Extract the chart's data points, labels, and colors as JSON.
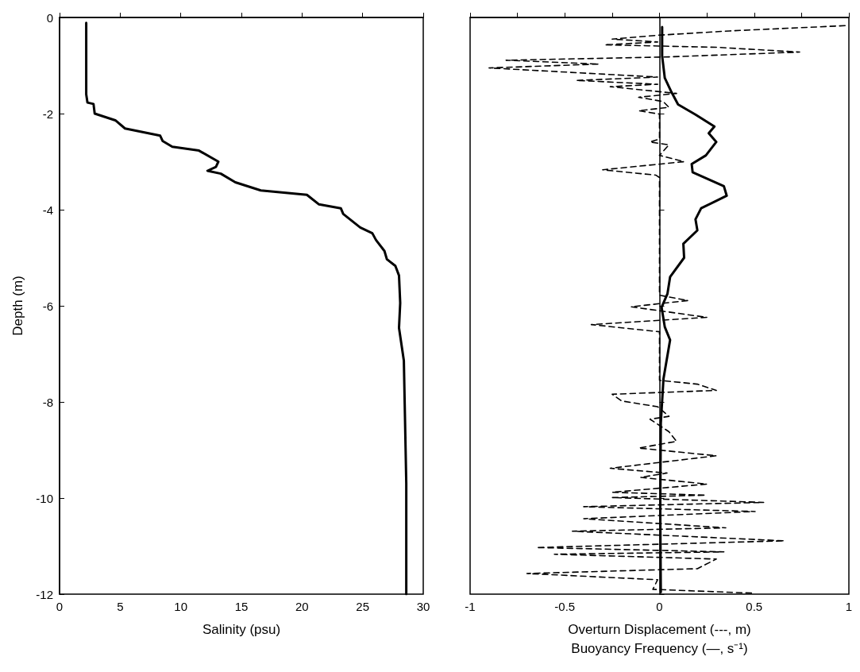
{
  "chart_data": [
    {
      "type": "line",
      "xlabel": "Salinity (psu)",
      "ylabel": "Depth (m)",
      "xlim": [
        0,
        30
      ],
      "xticks": [
        0,
        5,
        10,
        15,
        20,
        25,
        30
      ],
      "ylim": [
        -12,
        0
      ],
      "yticks": [
        -12,
        -10,
        -8,
        -6,
        -4,
        -2,
        0
      ],
      "series": [
        {
          "color": "#000000",
          "line_style": "solid",
          "x": [
            2.2,
            2.2,
            2.3,
            2.8,
            2.9,
            4.6,
            5.4,
            8.3,
            8.5,
            9.3,
            11.5,
            13.1,
            12.9,
            12.2,
            13.3,
            14.5,
            16.6,
            20.4,
            21.4,
            23.2,
            23.4,
            24.8,
            25.8,
            26.1,
            26.8,
            27.0,
            27.7,
            28.0,
            28.1,
            28.0,
            28.4,
            28.6,
            28.6
          ],
          "values": [
            -0.11,
            -1.6,
            -1.77,
            -1.8,
            -2.0,
            -2.14,
            -2.31,
            -2.46,
            -2.57,
            -2.69,
            -2.77,
            -3.0,
            -3.11,
            -3.19,
            -3.25,
            -3.43,
            -3.6,
            -3.69,
            -3.89,
            -3.97,
            -4.09,
            -4.37,
            -4.49,
            -4.63,
            -4.86,
            -5.03,
            -5.17,
            -5.37,
            -5.94,
            -6.46,
            -7.14,
            -9.7,
            -12
          ]
        }
      ]
    },
    {
      "type": "line",
      "xlabel": "Overturn Displacement (---, m)\nBuoyancy Frequency (—, s⁻¹)",
      "xlim": [
        -1,
        1
      ],
      "xticks": [
        -1,
        {
          "value": -0.75,
          "label": null
        },
        -0.5,
        {
          "value": -0.25,
          "label": null
        },
        0,
        {
          "value": 0.25,
          "label": null
        },
        0.5,
        {
          "value": 0.75,
          "label": null
        },
        1
      ],
      "ylim": [
        -12,
        0
      ],
      "yticks": [
        {
          "value": -12,
          "label": null
        },
        {
          "value": -10,
          "label": null
        },
        {
          "value": -8,
          "label": null
        },
        {
          "value": -6,
          "label": null
        },
        {
          "value": -4,
          "label": null
        },
        {
          "value": -2,
          "label": null
        },
        {
          "value": 0,
          "label": null
        }
      ],
      "tick_labels": "x",
      "series": [
        {
          "color": "#000000",
          "line_style": "dashed",
          "x": [
            0.98,
            0.37,
            -0.01,
            -0.25,
            -0.01,
            -0.29,
            0.3,
            0.74,
            0.05,
            -0.81,
            -0.32,
            -0.9,
            -0.01,
            -0.44,
            -0.01,
            -0.26,
            0.09,
            -0.11,
            0.02,
            0.05,
            -0.11,
            0,
            0,
            -0.05,
            0.05,
            0,
            0.13,
            -0.3,
            -0.02,
            0,
            0,
            0.15,
            -0.15,
            0.25,
            -0.36,
            0,
            0,
            0.2,
            0.3,
            -0.25,
            -0.2,
            -0.01,
            0.05,
            -0.05,
            0.05,
            0.09,
            -0.11,
            0.3,
            -0.26,
            0.04,
            -0.1,
            0.25,
            -0.25,
            0.245,
            -0.25,
            0.55,
            -0.4,
            0.505,
            -0.4,
            0.35,
            -0.46,
            0.66,
            -0.65,
            0.34,
            -0.555,
            0.3,
            0.2,
            -0.7,
            -0.01,
            -0.035,
            0.5
          ],
          "values": [
            -0.17,
            -0.28,
            -0.37,
            -0.45,
            -0.51,
            -0.57,
            -0.62,
            -0.72,
            -0.82,
            -0.89,
            -0.97,
            -1.05,
            -1.24,
            -1.31,
            -1.39,
            -1.44,
            -1.58,
            -1.66,
            -1.75,
            -1.87,
            -1.94,
            -2.01,
            -2.53,
            -2.59,
            -2.65,
            -2.87,
            -3.0,
            -3.17,
            -3.28,
            -3.33,
            -5.78,
            -5.89,
            -6.02,
            -6.24,
            -6.39,
            -6.54,
            -7.55,
            -7.63,
            -7.76,
            -7.84,
            -7.98,
            -8.1,
            -8.3,
            -8.36,
            -8.62,
            -8.82,
            -8.96,
            -9.12,
            -9.38,
            -9.48,
            -9.57,
            -9.71,
            -9.88,
            -9.94,
            -9.99,
            -10.09,
            -10.18,
            -10.28,
            -10.43,
            -10.62,
            -10.69,
            -10.89,
            -11.03,
            -11.12,
            -11.17,
            -11.27,
            -11.47,
            -11.57,
            -11.7,
            -11.9,
            -11.98
          ]
        },
        {
          "color": "#000000",
          "line_style": "solid",
          "x": [
            0.014,
            0.014,
            0.028,
            0.063,
            0.098,
            0.19,
            0.29,
            0.26,
            0.3,
            0.245,
            0.17,
            0.175,
            0.34,
            0.355,
            0.22,
            0.19,
            0.2,
            0.126,
            0.13,
            0.056,
            0.042,
            0.011,
            0.028,
            0.056,
            0.021,
            0.007,
            0.004,
            0.007
          ],
          "values": [
            -0.2,
            -0.8,
            -1.26,
            -1.55,
            -1.81,
            -2.02,
            -2.27,
            -2.41,
            -2.59,
            -2.87,
            -3.05,
            -3.22,
            -3.51,
            -3.71,
            -3.97,
            -4.2,
            -4.43,
            -4.71,
            -5.0,
            -5.4,
            -5.75,
            -6.03,
            -6.44,
            -6.71,
            -7.52,
            -8.44,
            -10.17,
            -11.96
          ]
        }
      ]
    }
  ]
}
